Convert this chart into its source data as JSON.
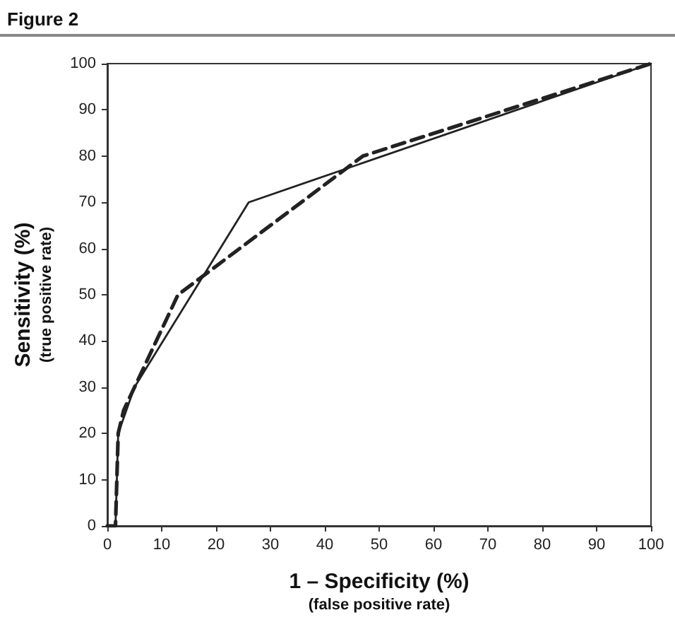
{
  "chart_data": {
    "type": "line",
    "title": "Figure 2",
    "xlabel": "1 – Specificity (%)\n(false positive rate)",
    "ylabel": "Sensitivity (%)\n(true positive rate)",
    "xlim": [
      0,
      100
    ],
    "xticks": [
      0,
      10,
      20,
      30,
      40,
      50,
      60,
      70,
      80,
      90,
      100
    ],
    "ylim": [
      0,
      100
    ],
    "yticks": [
      0,
      10,
      20,
      30,
      40,
      50,
      60,
      70,
      80,
      90,
      100
    ],
    "grid": false,
    "marker": "none",
    "series": [
      {
        "color": "#222222",
        "line_style": "solid",
        "x": [
          0,
          1.5,
          2,
          5,
          26,
          100
        ],
        "values": [
          0,
          0,
          20,
          30,
          70,
          100
        ]
      },
      {
        "color": "#222222",
        "line_style": "dashed",
        "x": [
          0,
          1.5,
          2,
          3,
          5,
          13,
          47,
          100
        ],
        "values": [
          0,
          0,
          20,
          25,
          30,
          50,
          80,
          100
        ]
      }
    ]
  }
}
